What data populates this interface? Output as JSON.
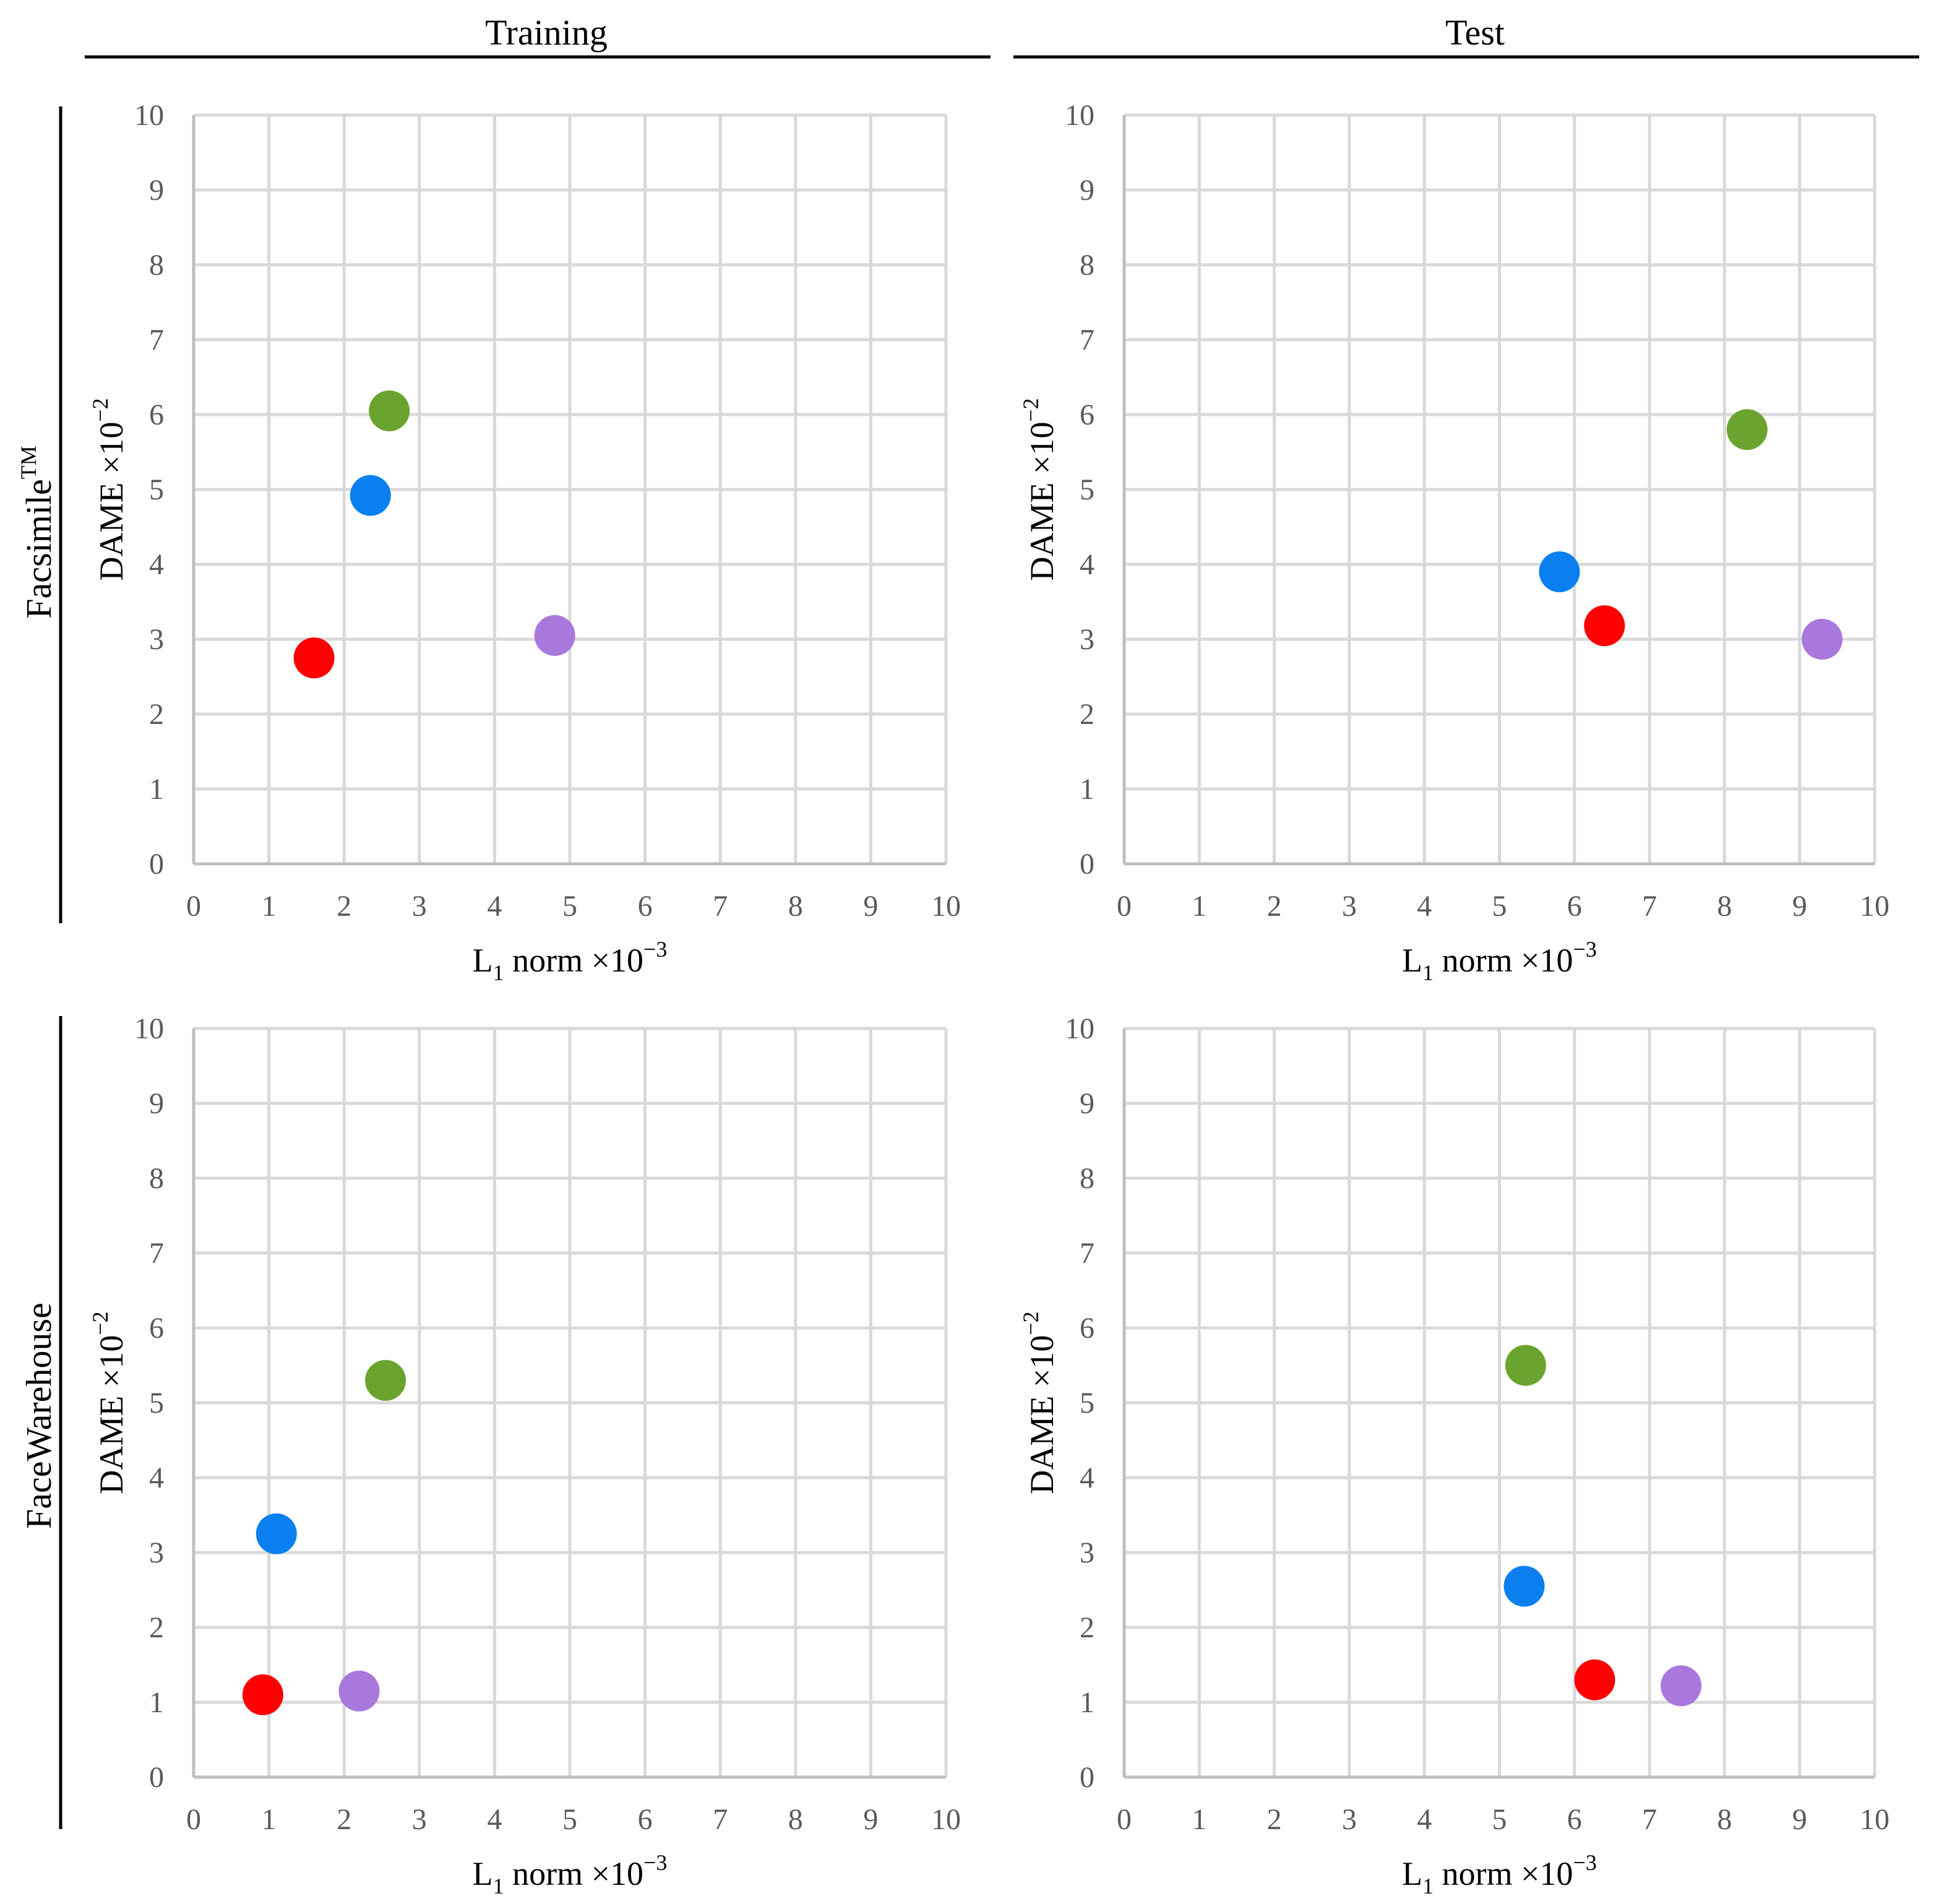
{
  "figure": {
    "column_titles": [
      "Training",
      "Test"
    ],
    "row_titles": [
      "Facsimile",
      "FaceWarehouse"
    ],
    "row_superscripts": [
      "TM",
      ""
    ]
  },
  "chart_data": [
    {
      "type": "scatter",
      "panel": "Facsimile - Training",
      "xlabel": "L1 norm ×10−3",
      "ylabel": "DAME ×10−2",
      "xlim": [
        0,
        10
      ],
      "ylim": [
        0,
        10
      ],
      "xticks": [
        0,
        1,
        2,
        3,
        4,
        5,
        6,
        7,
        8,
        9,
        10
      ],
      "yticks": [
        0,
        1,
        2,
        3,
        4,
        5,
        6,
        7,
        8,
        9,
        10
      ],
      "grid": true,
      "points": [
        {
          "x": 2.6,
          "y": 6.05,
          "color": "#6aa42e"
        },
        {
          "x": 2.35,
          "y": 4.92,
          "color": "#0a7ff0"
        },
        {
          "x": 1.6,
          "y": 2.75,
          "color": "#ff0000"
        },
        {
          "x": 4.8,
          "y": 3.05,
          "color": "#a878dc"
        }
      ]
    },
    {
      "type": "scatter",
      "panel": "Facsimile - Test",
      "xlabel": "L1 norm ×10−3",
      "ylabel": "DAME ×10−2",
      "xlim": [
        0,
        10
      ],
      "ylim": [
        0,
        10
      ],
      "xticks": [
        0,
        1,
        2,
        3,
        4,
        5,
        6,
        7,
        8,
        9,
        10
      ],
      "yticks": [
        0,
        1,
        2,
        3,
        4,
        5,
        6,
        7,
        8,
        9,
        10
      ],
      "grid": true,
      "points": [
        {
          "x": 8.3,
          "y": 5.8,
          "color": "#6aa42e"
        },
        {
          "x": 5.8,
          "y": 3.9,
          "color": "#0a7ff0"
        },
        {
          "x": 6.4,
          "y": 3.18,
          "color": "#ff0000"
        },
        {
          "x": 9.3,
          "y": 3.0,
          "color": "#a878dc"
        }
      ]
    },
    {
      "type": "scatter",
      "panel": "FaceWarehouse - Training",
      "xlabel": "L1 norm ×10−3",
      "ylabel": "DAME ×10−2",
      "xlim": [
        0,
        10
      ],
      "ylim": [
        0,
        10
      ],
      "xticks": [
        0,
        1,
        2,
        3,
        4,
        5,
        6,
        7,
        8,
        9,
        10
      ],
      "yticks": [
        0,
        1,
        2,
        3,
        4,
        5,
        6,
        7,
        8,
        9,
        10
      ],
      "grid": true,
      "points": [
        {
          "x": 2.55,
          "y": 5.3,
          "color": "#6aa42e"
        },
        {
          "x": 1.1,
          "y": 3.25,
          "color": "#0a7ff0"
        },
        {
          "x": 0.92,
          "y": 1.1,
          "color": "#ff0000"
        },
        {
          "x": 2.2,
          "y": 1.15,
          "color": "#a878dc"
        }
      ]
    },
    {
      "type": "scatter",
      "panel": "FaceWarehouse - Test",
      "xlabel": "L1 norm ×10−3",
      "ylabel": "DAME ×10−2",
      "xlim": [
        0,
        10
      ],
      "ylim": [
        0,
        10
      ],
      "xticks": [
        0,
        1,
        2,
        3,
        4,
        5,
        6,
        7,
        8,
        9,
        10
      ],
      "yticks": [
        0,
        1,
        2,
        3,
        4,
        5,
        6,
        7,
        8,
        9,
        10
      ],
      "grid": true,
      "points": [
        {
          "x": 5.35,
          "y": 5.5,
          "color": "#6aa42e"
        },
        {
          "x": 5.33,
          "y": 2.55,
          "color": "#0a7ff0"
        },
        {
          "x": 6.27,
          "y": 1.3,
          "color": "#ff0000"
        },
        {
          "x": 7.42,
          "y": 1.22,
          "color": "#a878dc"
        }
      ]
    }
  ]
}
